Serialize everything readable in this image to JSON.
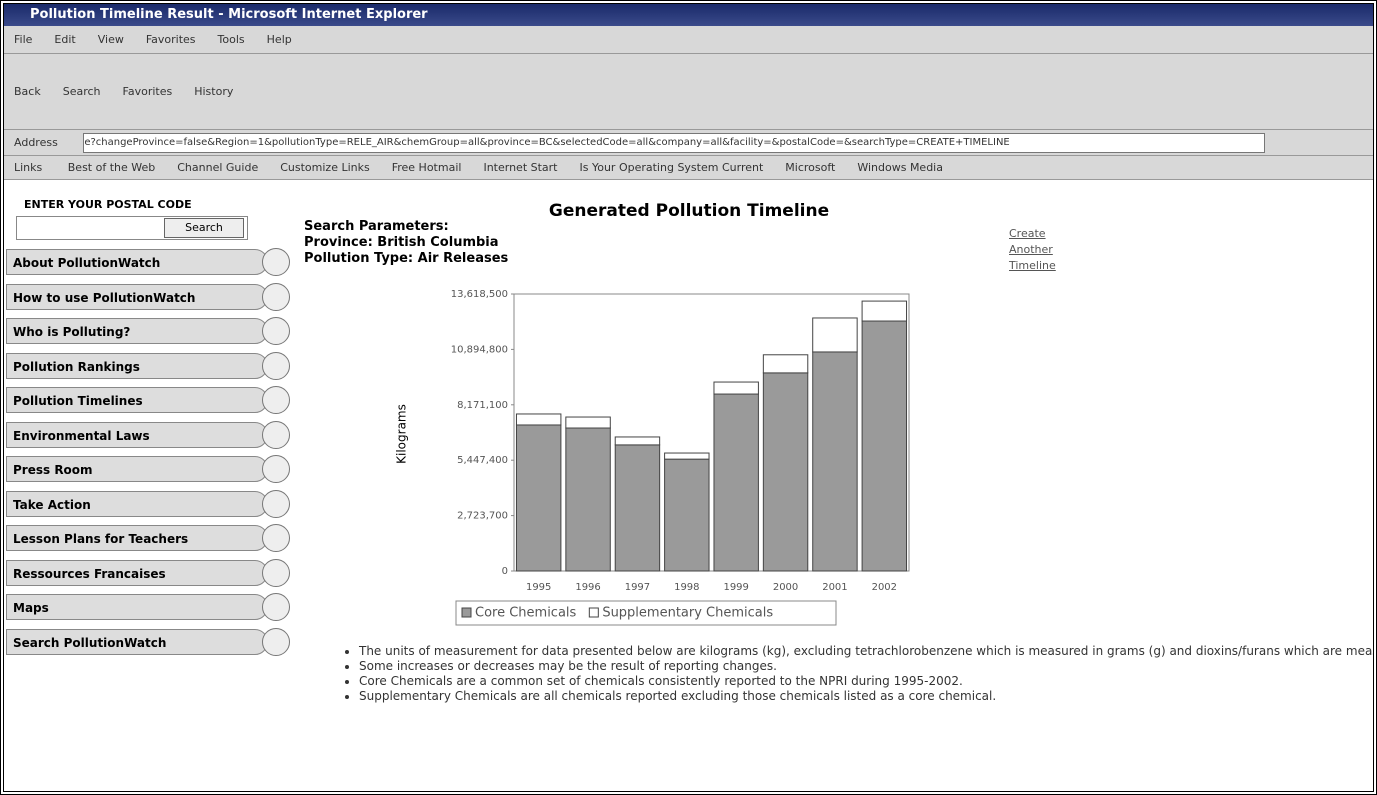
{
  "window": {
    "title": "Pollution Timeline Result - Microsoft Internet Explorer",
    "menu": [
      "File",
      "Edit",
      "View",
      "Favorites",
      "Tools",
      "Help"
    ],
    "toolbar": [
      "Back",
      "Search",
      "Favorites",
      "History"
    ],
    "address_label": "Address",
    "address": "e?changeProvince=false&Region=1&pollutionType=RELE_AIR&chemGroup=all&province=BC&selectedCode=all&company=all&facility=&postalCode=&searchType=CREATE+TIMELINE",
    "links_label": "Links",
    "links": [
      "Best of the Web",
      "Channel Guide",
      "Customize Links",
      "Free Hotmail",
      "Internet Start",
      "Is Your Operating System Current",
      "Microsoft",
      "Windows Media"
    ]
  },
  "sidebar": {
    "postal_label": "ENTER YOUR POSTAL CODE",
    "search_button": "Search",
    "nav": [
      "About PollutionWatch",
      "How to use PollutionWatch",
      "Who is Polluting?",
      "Pollution Rankings",
      "Pollution Timelines",
      "Environmental Laws",
      "Press Room",
      "Take Action",
      "Lesson Plans for Teachers",
      "Ressources Francaises",
      "Maps",
      "Search PollutionWatch"
    ]
  },
  "content": {
    "params": [
      "Search Parameters:",
      "Province: British Columbia",
      "Pollution Type: Air Releases"
    ],
    "side_link": [
      "Create",
      "Another",
      "Timeline"
    ],
    "notes": [
      "The units of measurement for data presented below are kilograms (kg), excluding tetrachlorobenzene which is measured in grams (g) and dioxins/furans which are measured in grams (g) TEQ.",
      "Some increases or decreases may be the result of reporting changes.",
      "Core Chemicals are a common set of chemicals consistently reported to the NPRI during 1995-2002.",
      "Supplementary Chemicals are all chemicals reported excluding those chemicals listed as a core chemical."
    ]
  },
  "chart_data": {
    "type": "bar",
    "stacked": true,
    "title": "Generated Pollution Timeline",
    "y_label": "Kilograms",
    "categories": [
      "1995",
      "1996",
      "1997",
      "1998",
      "1999",
      "2000",
      "2001",
      "2002"
    ],
    "series": [
      {
        "name": "Core Chemicals",
        "color": "#9a9a9a",
        "values": [
          7180000,
          7030000,
          6200000,
          5500000,
          8700000,
          9740000,
          10770000,
          12290000
        ]
      },
      {
        "name": "Supplementary Chemicals",
        "color": "#ffffff",
        "values": [
          540000,
          540000,
          390000,
          300000,
          590000,
          890000,
          1670000,
          980000
        ]
      }
    ],
    "ylim": [
      0,
      13618500
    ],
    "yticks": [
      0,
      {
        "value": 2723700,
        "label": "2,723,700"
      },
      {
        "value": 5447400,
        "label": "5,447,400"
      },
      {
        "value": 8171100,
        "label": "8,171,100"
      },
      {
        "value": 10894800,
        "label": "10,894,800"
      },
      {
        "value": 13618500,
        "label": "13,618,500"
      }
    ],
    "grid": false
  }
}
